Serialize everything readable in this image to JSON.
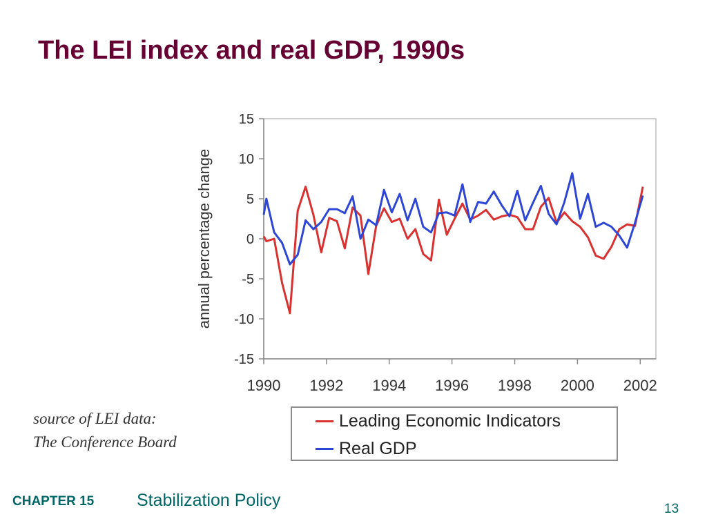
{
  "slide": {
    "title": "The LEI index and real GDP, 1990s",
    "source_line1": "source of LEI data:",
    "source_line2": "The Conference Board"
  },
  "footer": {
    "chapter": "CHAPTER 15",
    "topic": "Stabilization Policy",
    "page": "13"
  },
  "chart_data": {
    "type": "line",
    "title": "",
    "xlabel": "",
    "ylabel": "annual percentage change",
    "xlim": [
      1990,
      2002.5
    ],
    "ylim": [
      -15,
      15
    ],
    "x_ticks": [
      "1990",
      "1992",
      "1994",
      "1996",
      "1998",
      "2000",
      "2002"
    ],
    "y_ticks": [
      "15",
      "10",
      "5",
      "0",
      "-5",
      "-10",
      "-15"
    ],
    "grid": false,
    "legend": "bottom",
    "series": [
      {
        "name": "Leading Economic Indicators",
        "color": "#d93030",
        "x": [
          1990,
          1990.083,
          1990.333,
          1990.583,
          1990.833,
          1991.083,
          1991.333,
          1991.583,
          1991.833,
          1992.083,
          1992.333,
          1992.583,
          1992.833,
          1993.083,
          1993.333,
          1993.583,
          1993.833,
          1994.083,
          1994.333,
          1994.583,
          1994.833,
          1995.083,
          1995.333,
          1995.583,
          1995.833,
          1996.083,
          1996.333,
          1996.583,
          1996.833,
          1997.083,
          1997.333,
          1997.583,
          1997.833,
          1998.083,
          1998.333,
          1998.583,
          1998.833,
          1999.083,
          1999.333,
          1999.583,
          1999.833,
          2000.083,
          2000.333,
          2000.583,
          2000.833,
          2001.083,
          2001.333,
          2001.583,
          2001.833,
          2002.083
        ],
        "values": [
          0.3,
          -0.3,
          0.0,
          -5.5,
          -9.3,
          3.5,
          6.5,
          3.0,
          -1.7,
          2.6,
          2.2,
          -1.2,
          3.9,
          2.9,
          -4.4,
          1.6,
          3.8,
          2.1,
          2.5,
          0.0,
          1.2,
          -1.9,
          -2.7,
          4.9,
          0.5,
          2.5,
          4.4,
          2.4,
          2.9,
          3.6,
          2.4,
          2.8,
          3.0,
          2.7,
          1.2,
          1.2,
          4.0,
          5.1,
          2.0,
          3.3,
          2.2,
          1.5,
          0.2,
          -2.1,
          -2.5,
          -1.0,
          1.2,
          1.8,
          1.6,
          6.5
        ]
      },
      {
        "name": "Real GDP",
        "color": "#2d46d6",
        "x": [
          1990,
          1990.083,
          1990.333,
          1990.583,
          1990.833,
          1991.083,
          1991.333,
          1991.583,
          1991.833,
          1992.083,
          1992.333,
          1992.583,
          1992.833,
          1993.083,
          1993.333,
          1993.583,
          1993.833,
          1994.083,
          1994.333,
          1994.583,
          1994.833,
          1995.083,
          1995.333,
          1995.583,
          1995.833,
          1996.083,
          1996.333,
          1996.583,
          1996.833,
          1997.083,
          1997.333,
          1997.583,
          1997.833,
          1998.083,
          1998.333,
          1998.583,
          1998.833,
          1999.083,
          1999.333,
          1999.583,
          1999.833,
          2000.083,
          2000.333,
          2000.583,
          2000.833,
          2001.083,
          2001.333,
          2001.583,
          2001.833,
          2002.083
        ],
        "values": [
          3.0,
          5.0,
          0.8,
          -0.5,
          -3.2,
          -2.0,
          2.3,
          1.2,
          2.1,
          3.7,
          3.7,
          3.2,
          5.3,
          0.0,
          2.4,
          1.7,
          6.1,
          3.3,
          5.6,
          2.3,
          5.0,
          1.5,
          0.8,
          3.2,
          3.3,
          2.9,
          6.8,
          2.1,
          4.6,
          4.4,
          5.9,
          4.2,
          2.8,
          6.0,
          2.3,
          4.5,
          6.6,
          3.1,
          1.8,
          4.6,
          8.2,
          2.5,
          5.6,
          1.5,
          2.0,
          1.5,
          0.4,
          -1.1,
          2.0,
          5.4
        ]
      }
    ]
  }
}
